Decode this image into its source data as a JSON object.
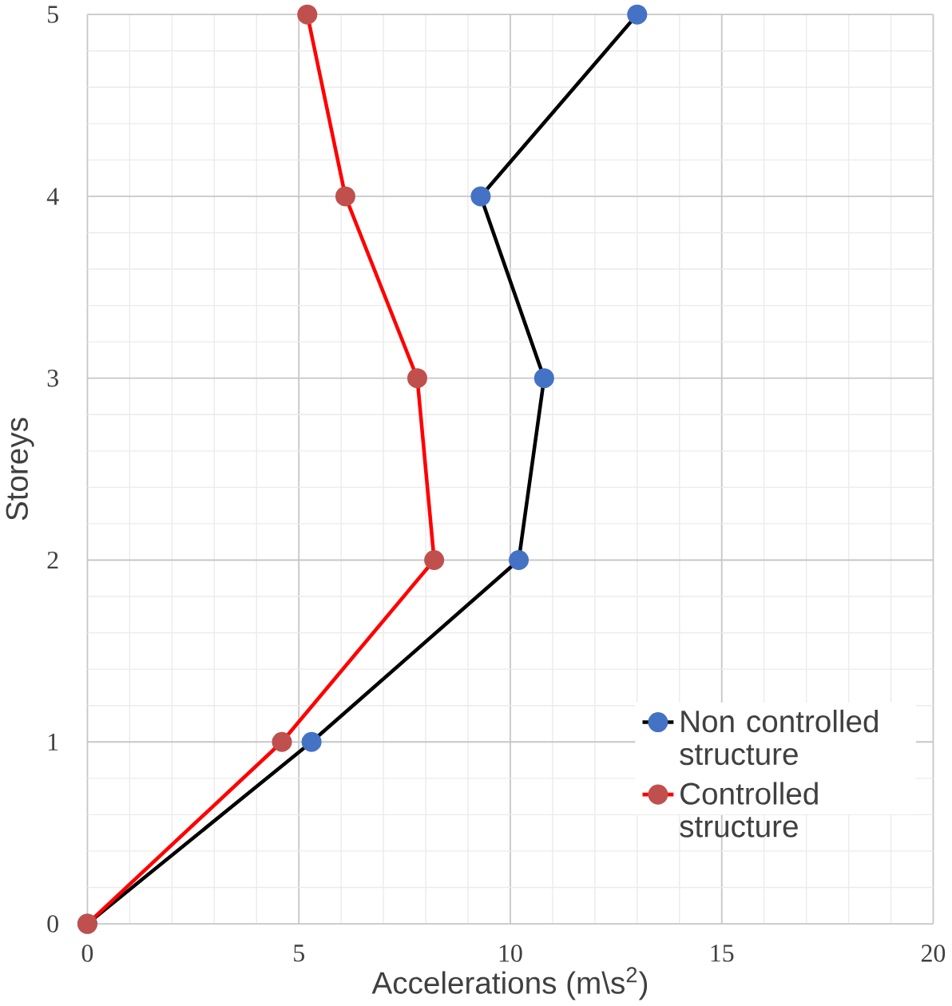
{
  "chart_data": {
    "type": "line",
    "xlabel": "Accelerations (m\\s$^{2}$)",
    "ylabel": "Storeys",
    "xlim": [
      0,
      20
    ],
    "ylim": [
      0,
      5
    ],
    "xticks": [
      0,
      5,
      10,
      15,
      20
    ],
    "yticks": [
      0,
      1,
      2,
      3,
      4,
      5
    ],
    "grid": true,
    "legend": "bottom right",
    "marker": "circle",
    "line_style": "solid",
    "series": [
      {
        "name": "Non controlled structure",
        "color": "#000000",
        "colors": [
          "#4472c4",
          "#4472c4",
          "#4472c4",
          "#4472c4",
          "#4472c4",
          "#4472c4"
        ],
        "x": [
          0,
          5.3,
          10.2,
          10.8,
          9.3,
          13.0
        ],
        "values": [
          0,
          1,
          2,
          3,
          4,
          5
        ]
      },
      {
        "name": "Controlled structure",
        "color": "#ff0000",
        "colors": [
          "#c0504d",
          "#c0504d",
          "#c0504d",
          "#c0504d",
          "#c0504d",
          "#c0504d"
        ],
        "x": [
          0,
          4.6,
          8.2,
          7.8,
          6.1,
          5.2
        ],
        "values": [
          0,
          1,
          2,
          3,
          4,
          5
        ]
      }
    ]
  }
}
